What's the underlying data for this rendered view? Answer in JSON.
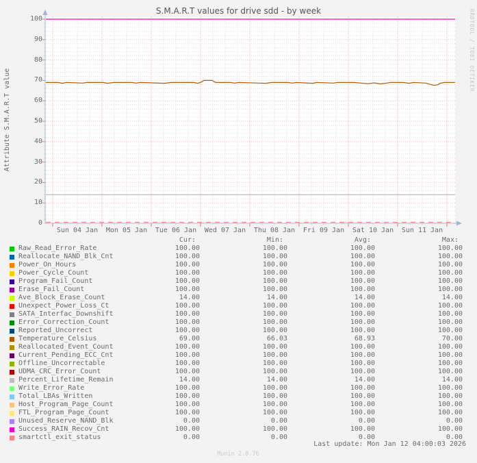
{
  "title": "S.M.A.R.T values for drive sdd - by week",
  "y_axis_label": "Attribute S.M.A.R.T value",
  "watermark_right": "RRDTOOL / TOBI OETIKER",
  "footer": {
    "version": "Munin 2.0.76",
    "last_update": "Last update: Mon Jan 12 04:00:03 2026"
  },
  "legend": {
    "headers": [
      "Cur:",
      "Min:",
      "Avg:",
      "Max:"
    ],
    "rows": [
      {
        "label": "Raw_Read_Error_Rate",
        "color": "#00CC00",
        "cur": "100.00",
        "min": "100.00",
        "avg": "100.00",
        "max": "100.00"
      },
      {
        "label": "Reallocate_NAND_Blk_Cnt",
        "color": "#0066B3",
        "cur": "100.00",
        "min": "100.00",
        "avg": "100.00",
        "max": "100.00"
      },
      {
        "label": "Power_On_Hours",
        "color": "#FF8000",
        "cur": "100.00",
        "min": "100.00",
        "avg": "100.00",
        "max": "100.00"
      },
      {
        "label": "Power_Cycle_Count",
        "color": "#FFCC00",
        "cur": "100.00",
        "min": "100.00",
        "avg": "100.00",
        "max": "100.00"
      },
      {
        "label": "Program_Fail_Count",
        "color": "#330099",
        "cur": "100.00",
        "min": "100.00",
        "avg": "100.00",
        "max": "100.00"
      },
      {
        "label": "Erase_Fail_Count",
        "color": "#990099",
        "cur": "100.00",
        "min": "100.00",
        "avg": "100.00",
        "max": "100.00"
      },
      {
        "label": "Ave_Block_Erase_Count",
        "color": "#CCFF00",
        "cur": "14.00",
        "min": "14.00",
        "avg": "14.00",
        "max": "14.00"
      },
      {
        "label": "Unexpect_Power_Loss_Ct",
        "color": "#FF0000",
        "cur": "100.00",
        "min": "100.00",
        "avg": "100.00",
        "max": "100.00"
      },
      {
        "label": "SATA_Interfac_Downshift",
        "color": "#808080",
        "cur": "100.00",
        "min": "100.00",
        "avg": "100.00",
        "max": "100.00"
      },
      {
        "label": "Error_Correction_Count",
        "color": "#008F00",
        "cur": "100.00",
        "min": "100.00",
        "avg": "100.00",
        "max": "100.00"
      },
      {
        "label": "Reported_Uncorrect",
        "color": "#00487D",
        "cur": "100.00",
        "min": "100.00",
        "avg": "100.00",
        "max": "100.00"
      },
      {
        "label": "Temperature_Celsius",
        "color": "#B35A00",
        "cur": "69.00",
        "min": "66.03",
        "avg": "68.93",
        "max": "70.00"
      },
      {
        "label": "Reallocated_Event_Count",
        "color": "#B38F00",
        "cur": "100.00",
        "min": "100.00",
        "avg": "100.00",
        "max": "100.00"
      },
      {
        "label": "Current_Pending_ECC_Cnt",
        "color": "#6B006B",
        "cur": "100.00",
        "min": "100.00",
        "avg": "100.00",
        "max": "100.00"
      },
      {
        "label": "Offline_Uncorrectable",
        "color": "#8FB300",
        "cur": "100.00",
        "min": "100.00",
        "avg": "100.00",
        "max": "100.00"
      },
      {
        "label": "UDMA_CRC_Error_Count",
        "color": "#B30000",
        "cur": "100.00",
        "min": "100.00",
        "avg": "100.00",
        "max": "100.00"
      },
      {
        "label": "Percent_Lifetime_Remain",
        "color": "#BEBEBE",
        "cur": "14.00",
        "min": "14.00",
        "avg": "14.00",
        "max": "14.00"
      },
      {
        "label": "Write_Error_Rate",
        "color": "#80FF80",
        "cur": "100.00",
        "min": "100.00",
        "avg": "100.00",
        "max": "100.00"
      },
      {
        "label": "Total_LBAs_Written",
        "color": "#80C9FF",
        "cur": "100.00",
        "min": "100.00",
        "avg": "100.00",
        "max": "100.00"
      },
      {
        "label": "Host_Program_Page_Count",
        "color": "#FFC080",
        "cur": "100.00",
        "min": "100.00",
        "avg": "100.00",
        "max": "100.00"
      },
      {
        "label": "FTL_Program_Page_Count",
        "color": "#FFE680",
        "cur": "100.00",
        "min": "100.00",
        "avg": "100.00",
        "max": "100.00"
      },
      {
        "label": "Unused_Reserve_NAND_Blk",
        "color": "#AA80FF",
        "cur": "0.00",
        "min": "0.00",
        "avg": "0.00",
        "max": "0.00"
      },
      {
        "label": "Success_RAIN_Recov_Cnt",
        "color": "#EE00CC",
        "cur": "100.00",
        "min": "100.00",
        "avg": "100.00",
        "max": "100.00"
      },
      {
        "label": "smartctl_exit_status",
        "color": "#FF8080",
        "cur": "0.00",
        "min": "0.00",
        "avg": "0.00",
        "max": "0.00"
      }
    ]
  },
  "chart_data": {
    "type": "line",
    "title": "S.M.A.R.T values for drive sdd - by week",
    "xlabel": "",
    "ylabel": "Attribute S.M.A.R.T value",
    "ylim": [
      0,
      100
    ],
    "grid": true,
    "y_ticks": [
      0,
      10,
      20,
      30,
      40,
      50,
      60,
      70,
      80,
      90,
      100
    ],
    "x_tick_labels": [
      "Sun 04 Jan",
      "Mon 05 Jan",
      "Tue 06 Jan",
      "Wed 07 Jan",
      "Thu 08 Jan",
      "Fri 09 Jan",
      "Sat 10 Jan",
      "Sun 11 Jan"
    ],
    "hours_span": 199.3,
    "hours_before_first_midnight": 3.3,
    "series": [
      {
        "name": "attributes_at_100",
        "color": "#EE00CC",
        "type": "hline",
        "value": 100,
        "style": "solid"
      },
      {
        "name": "Percent_Lifetime_Remain_and_Ave_Block_Erase",
        "color": "#BEBEBE",
        "type": "hline",
        "value": 14,
        "style": "solid"
      },
      {
        "name": "attributes_at_0",
        "color": "#FF8080",
        "type": "hline",
        "value": 0,
        "style": "dashed"
      },
      {
        "name": "Temperature_Celsius",
        "color": "#B35A00",
        "type": "line",
        "style": "solid",
        "points": [
          [
            0,
            69
          ],
          [
            6,
            69
          ],
          [
            8,
            68.6
          ],
          [
            10,
            69
          ],
          [
            18,
            68.7
          ],
          [
            20,
            69
          ],
          [
            28,
            69
          ],
          [
            30,
            68.6
          ],
          [
            33,
            69
          ],
          [
            42,
            69
          ],
          [
            44,
            68.7
          ],
          [
            46,
            69
          ],
          [
            58,
            68.6
          ],
          [
            61,
            69
          ],
          [
            72,
            69
          ],
          [
            74,
            68.6
          ],
          [
            76,
            69.3
          ],
          [
            77,
            70
          ],
          [
            81,
            70
          ],
          [
            82,
            69.3
          ],
          [
            83,
            69
          ],
          [
            90,
            69
          ],
          [
            92,
            68.7
          ],
          [
            94,
            69
          ],
          [
            107,
            68.6
          ],
          [
            110,
            69
          ],
          [
            118,
            69
          ],
          [
            120,
            68.7
          ],
          [
            122,
            69
          ],
          [
            130,
            68.6
          ],
          [
            132,
            69
          ],
          [
            140,
            68.7
          ],
          [
            142,
            69
          ],
          [
            150,
            69
          ],
          [
            157,
            68.4
          ],
          [
            160,
            68.8
          ],
          [
            163,
            68.3
          ],
          [
            166,
            68.7
          ],
          [
            168,
            69
          ],
          [
            174,
            69
          ],
          [
            177,
            68.6
          ],
          [
            179,
            69
          ],
          [
            185,
            68.7
          ],
          [
            187,
            68.1
          ],
          [
            189,
            67.6
          ],
          [
            191,
            67.9
          ],
          [
            192,
            68.6
          ],
          [
            194,
            69
          ],
          [
            199.3,
            69
          ]
        ]
      }
    ]
  }
}
